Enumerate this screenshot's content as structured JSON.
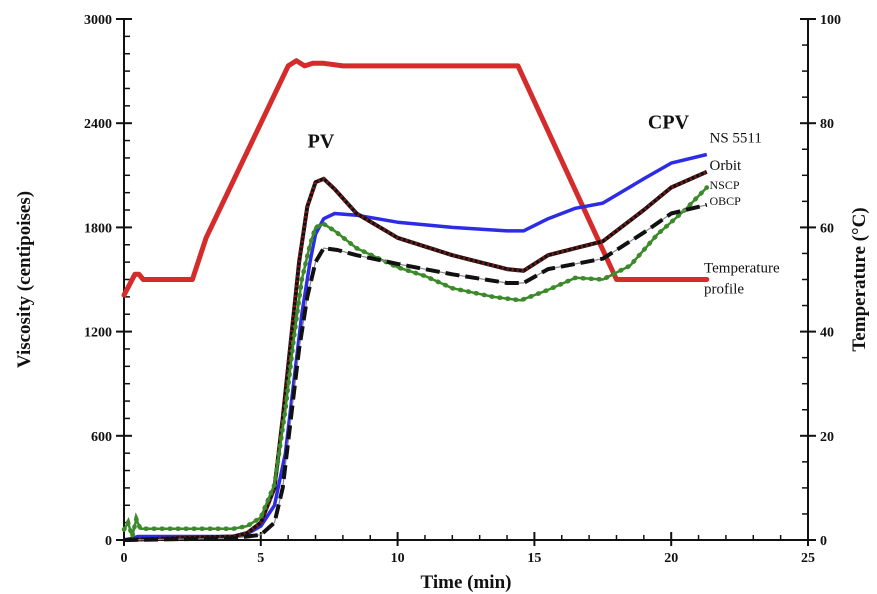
{
  "chart_data": {
    "type": "line",
    "xlabel": "Time (min)",
    "ylabel_left": "Viscosity (centipoises)",
    "ylabel_right": "Temperature (°C)",
    "xlim": [
      0,
      25
    ],
    "ylim_left": [
      0,
      3000
    ],
    "ylim_right": [
      0,
      100
    ],
    "x_ticks": [
      0,
      5,
      10,
      15,
      20,
      25
    ],
    "y_left_ticks": [
      0,
      600,
      1200,
      1800,
      2400,
      3000
    ],
    "y_right_ticks": [
      0,
      20,
      40,
      60,
      80,
      100
    ],
    "annotations": [
      {
        "text": "PV",
        "x": 7.2,
        "y": 2260
      },
      {
        "text": "CPV",
        "x": 19.9,
        "y": 2370
      }
    ],
    "series": [
      {
        "name": "Temperature profile",
        "axis": "right",
        "color": "#d42b2b",
        "style": "solid-thick",
        "x": [
          0,
          0.2,
          0.4,
          0.55,
          0.7,
          0.8,
          1.0,
          2.5,
          3.0,
          6.0,
          6.3,
          6.6,
          6.9,
          7.3,
          8.0,
          14.4,
          18.0,
          21.3
        ],
        "y": [
          47,
          49,
          51,
          51,
          50,
          50,
          50,
          50,
          58,
          91,
          92,
          91,
          91.5,
          91.5,
          91,
          91,
          50,
          50
        ]
      },
      {
        "name": "NS 5511",
        "axis": "left",
        "color": "#2c2ce6",
        "style": "solid",
        "x": [
          0,
          0.3,
          0.5,
          4.0,
          4.5,
          5.0,
          5.5,
          5.9,
          6.2,
          6.5,
          6.8,
          7.0,
          7.3,
          7.7,
          8.5,
          10.0,
          12.0,
          14.0,
          14.6,
          15.5,
          16.5,
          17.5,
          19.0,
          20.0,
          21.3
        ],
        "y": [
          0,
          10,
          20,
          20,
          35,
          80,
          200,
          500,
          900,
          1300,
          1600,
          1760,
          1850,
          1880,
          1870,
          1830,
          1800,
          1780,
          1780,
          1850,
          1910,
          1940,
          2080,
          2170,
          2220
        ]
      },
      {
        "name": "Orbit",
        "axis": "left",
        "color": "#7a1818",
        "style": "dotted",
        "x": [
          0,
          4.0,
          4.5,
          5.0,
          5.5,
          5.8,
          6.1,
          6.4,
          6.7,
          7.0,
          7.3,
          7.7,
          8.5,
          10.0,
          12.0,
          14.0,
          14.6,
          15.5,
          16.5,
          17.5,
          19.0,
          20.0,
          21.3
        ],
        "y": [
          0,
          20,
          40,
          100,
          300,
          700,
          1150,
          1600,
          1920,
          2060,
          2080,
          2020,
          1880,
          1740,
          1640,
          1560,
          1550,
          1640,
          1680,
          1720,
          1900,
          2030,
          2120
        ]
      },
      {
        "name": "NSCP",
        "axis": "left",
        "color": "#3d8a2a",
        "style": "solid-dots",
        "x": [
          0,
          0.15,
          0.3,
          0.45,
          0.6,
          4.0,
          4.5,
          5.0,
          5.5,
          5.9,
          6.2,
          6.5,
          6.8,
          7.0,
          7.3,
          7.7,
          8.5,
          10.0,
          11.0,
          12.0,
          13.5,
          14.5,
          15.5,
          16.5,
          17.5,
          18.5,
          19.5,
          20.5,
          21.3
        ],
        "y": [
          60,
          100,
          20,
          120,
          65,
          65,
          80,
          130,
          320,
          750,
          1150,
          1500,
          1700,
          1800,
          1820,
          1780,
          1680,
          1570,
          1520,
          1450,
          1400,
          1380,
          1440,
          1510,
          1500,
          1580,
          1760,
          1900,
          2030
        ]
      },
      {
        "name": "OBCP",
        "axis": "left",
        "color": "#111111",
        "style": "dashed",
        "x": [
          0,
          4.0,
          4.5,
          5.0,
          5.5,
          5.8,
          6.1,
          6.4,
          6.7,
          7.0,
          7.3,
          7.8,
          8.5,
          10.0,
          12.0,
          14.0,
          14.6,
          15.5,
          16.5,
          17.5,
          19.0,
          20.0,
          21.3
        ],
        "y": [
          0,
          10,
          20,
          30,
          100,
          300,
          700,
          1100,
          1400,
          1600,
          1680,
          1670,
          1640,
          1590,
          1530,
          1480,
          1480,
          1560,
          1590,
          1620,
          1770,
          1880,
          1930
        ]
      }
    ],
    "series_labels": [
      {
        "text": "NS 5511",
        "x": 21.4,
        "y": 2290
      },
      {
        "text": "Orbit",
        "x": 21.4,
        "y": 2130
      },
      {
        "text": "NSCP",
        "x": 21.4,
        "y": 2020
      },
      {
        "text": "OBCP",
        "x": 21.4,
        "y": 1930
      },
      {
        "text": "Temperature",
        "x": 21.2,
        "y": 1540
      },
      {
        "text": "profile",
        "x": 21.2,
        "y": 1420
      }
    ]
  }
}
